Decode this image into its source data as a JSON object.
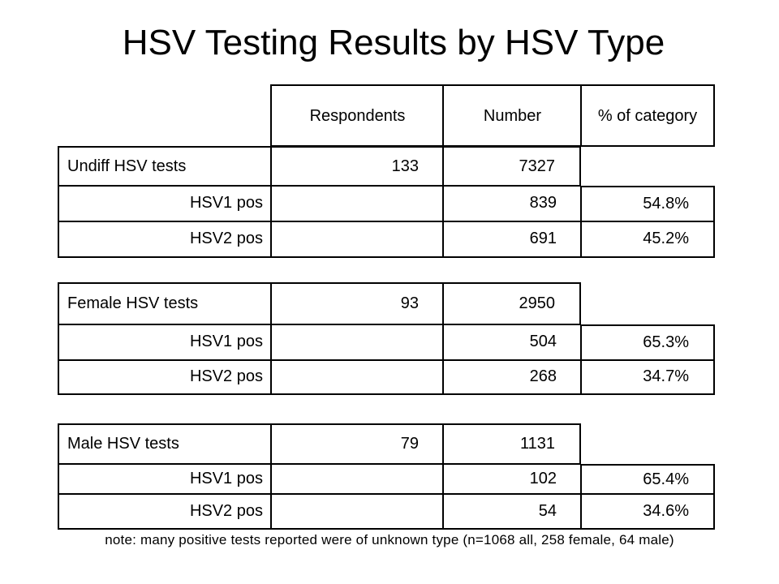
{
  "title": "HSV Testing Results by HSV Type",
  "columns": {
    "respondents": "Respondents",
    "number": "Number",
    "percent": "% of category"
  },
  "groups": [
    {
      "label": "Undiff HSV tests",
      "respondents": "133",
      "number": "7327",
      "rows": [
        {
          "label": "HSV1 pos",
          "number": "839",
          "percent": "54.8%"
        },
        {
          "label": "HSV2 pos",
          "number": "691",
          "percent": "45.2%"
        }
      ]
    },
    {
      "label": "Female HSV tests",
      "respondents": "93",
      "number": "2950",
      "rows": [
        {
          "label": "HSV1 pos",
          "number": "504",
          "percent": "65.3%"
        },
        {
          "label": "HSV2 pos",
          "number": "268",
          "percent": "34.7%"
        }
      ]
    },
    {
      "label": "Male HSV tests",
      "respondents": "79",
      "number": "1131",
      "rows": [
        {
          "label": "HSV1 pos",
          "number": "102",
          "percent": "65.4%"
        },
        {
          "label": "HSV2 pos",
          "number": "54",
          "percent": "34.6%"
        }
      ]
    }
  ],
  "note": "note: many positive tests reported were of unknown type (n=1068 all, 258 female, 64 male)"
}
